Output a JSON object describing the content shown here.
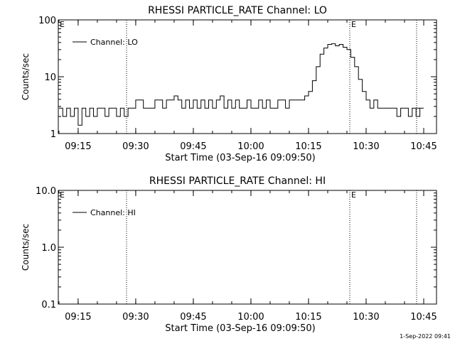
{
  "footer": {
    "timestamp": "1-Sep-2022 09:41"
  },
  "chart_data": [
    {
      "type": "line",
      "title": "RHESSI PARTICLE_RATE Channel: LO",
      "xlabel": "Start Time (03-Sep-16 09:09:50)",
      "ylabel": "Counts/sec",
      "y_scale": "log",
      "ylim": [
        1,
        100
      ],
      "xlim": [
        "09:09:50",
        "10:48:20"
      ],
      "x_ticks": [
        "09:15",
        "09:30",
        "09:45",
        "10:00",
        "10:15",
        "10:30",
        "10:45"
      ],
      "y_ticks": [
        "1",
        "10",
        "100"
      ],
      "legend_position": "top-left",
      "marker_labels": [
        "E",
        "E"
      ],
      "grid": false,
      "series": [
        {
          "name": "Channel: LO",
          "x": [
            "09:10",
            "09:11",
            "09:12",
            "09:13",
            "09:14",
            "09:15",
            "09:16",
            "09:17",
            "09:18",
            "09:19",
            "09:20",
            "09:21",
            "09:22",
            "09:23",
            "09:24",
            "09:25",
            "09:26",
            "09:27",
            "09:28",
            "09:29",
            "09:30",
            "09:31",
            "09:32",
            "09:33",
            "09:34",
            "09:35",
            "09:36",
            "09:37",
            "09:38",
            "09:39",
            "09:40",
            "09:41",
            "09:42",
            "09:43",
            "09:44",
            "09:45",
            "09:46",
            "09:47",
            "09:48",
            "09:49",
            "09:50",
            "09:51",
            "09:52",
            "09:53",
            "09:54",
            "09:55",
            "09:56",
            "09:57",
            "09:58",
            "09:59",
            "10:00",
            "10:01",
            "10:02",
            "10:03",
            "10:04",
            "10:05",
            "10:06",
            "10:07",
            "10:08",
            "10:09",
            "10:10",
            "10:11",
            "10:12",
            "10:13",
            "10:14",
            "10:15",
            "10:16",
            "10:17",
            "10:18",
            "10:19",
            "10:20",
            "10:21",
            "10:22",
            "10:23",
            "10:24",
            "10:25",
            "10:26",
            "10:27",
            "10:28",
            "10:29",
            "10:30",
            "10:31",
            "10:32",
            "10:33",
            "10:34",
            "10:35",
            "10:36",
            "10:37",
            "10:38",
            "10:39",
            "10:40",
            "10:41",
            "10:42",
            "10:43",
            "10:44",
            "10:45"
          ],
          "y": [
            2.8,
            2,
            2.8,
            2,
            2.8,
            1.4,
            2.8,
            2,
            2.8,
            2,
            2.8,
            2.8,
            2,
            2.8,
            2.8,
            2,
            2.8,
            2,
            2.8,
            2.8,
            3.9,
            3.9,
            2.8,
            2.8,
            2.8,
            3.9,
            3.9,
            2.8,
            3.9,
            3.9,
            4.6,
            3.9,
            2.8,
            3.9,
            2.8,
            3.9,
            2.8,
            3.9,
            2.8,
            3.9,
            2.8,
            3.9,
            4.6,
            2.8,
            3.9,
            2.8,
            3.9,
            2.8,
            2.8,
            3.9,
            2.8,
            2.8,
            3.9,
            2.8,
            3.9,
            2.8,
            2.8,
            3.9,
            3.9,
            2.8,
            3.9,
            3.9,
            3.9,
            3.9,
            4.6,
            5.5,
            8.5,
            15,
            25,
            32,
            37,
            38,
            35,
            37,
            33,
            30,
            22,
            15,
            9,
            5.5,
            3.9,
            2.8,
            3.9,
            2.8,
            2.8,
            2.8,
            2.8,
            2.8,
            2,
            2.8,
            2.8,
            2,
            2.8,
            2,
            2.8,
            2.8
          ]
        }
      ]
    },
    {
      "type": "line",
      "title": "RHESSI PARTICLE_RATE Channel: HI",
      "xlabel": "Start Time (03-Sep-16 09:09:50)",
      "ylabel": "Counts/sec",
      "y_scale": "log",
      "ylim": [
        0.1,
        10
      ],
      "xlim": [
        "09:09:50",
        "10:48:20"
      ],
      "x_ticks": [
        "09:15",
        "09:30",
        "09:45",
        "10:00",
        "10:15",
        "10:30",
        "10:45"
      ],
      "y_ticks": [
        "0.1",
        "1.0",
        "10.0"
      ],
      "legend_position": "top-left",
      "marker_labels": [
        "E",
        "E"
      ],
      "grid": false,
      "series": [
        {
          "name": "Channel: HI",
          "x": [],
          "y": []
        }
      ]
    }
  ]
}
